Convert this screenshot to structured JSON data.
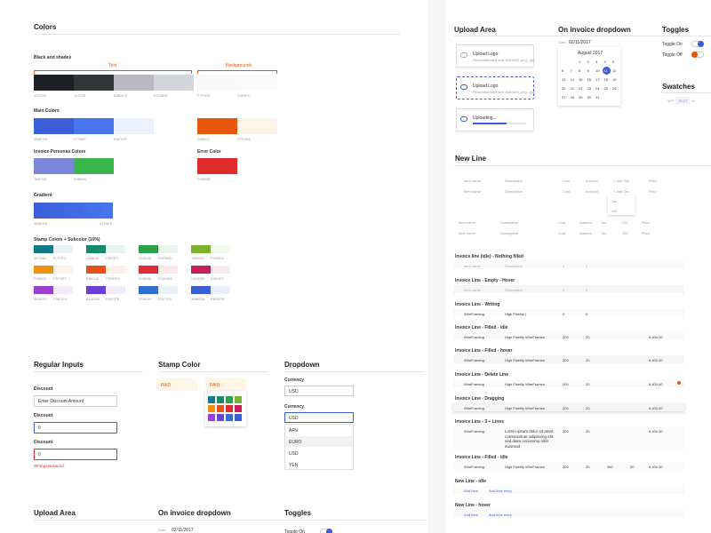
{
  "left": {
    "colors_title": "Colors",
    "black": {
      "label": "Black and shades",
      "text_label": "Text",
      "bg_label": "Backgrounds",
      "text": [
        "1C2024",
        "313739",
        "B8B8C0",
        "D2D6DB"
      ],
      "bg": [
        "F7F9FB",
        "F8FAFC"
      ]
    },
    "main": {
      "label": "Main Colors",
      "blue": [
        "3B5ED8",
        "4776EF",
        "EAF1FF"
      ],
      "orange": [
        "E8560C",
        "FFF4E8"
      ]
    },
    "personas": {
      "label": "Invoice Personas Colors",
      "colors": [
        "7B87D8",
        "39B54A"
      ]
    },
    "error": {
      "label": "Error Color",
      "colors": [
        "E02B2B"
      ]
    },
    "gradient": {
      "label": "Gradient",
      "colors": [
        "3B5ED8",
        "4776EF"
      ]
    },
    "stamp_colors": {
      "label": "Stamp Colors + Subcolor (10%)",
      "pairs": [
        [
          "0E7A8A",
          "E7F2F3"
        ],
        [
          "138A6A",
          "E8F3F0"
        ],
        [
          "2AA048",
          "EAF6ED"
        ],
        [
          "7AB32E",
          "F2F8EA"
        ],
        [
          "F0900C",
          "FEF4E7"
        ],
        [
          "E8511A",
          "FDEEE8"
        ],
        [
          "E02B36",
          "FCEAEB"
        ],
        [
          "C81E5B",
          "FAE9EF"
        ],
        [
          "9B3FD0",
          "F5ECFA"
        ],
        [
          "6A3FD8",
          "F0ECFB"
        ],
        [
          "2F6FD0",
          "EAF1FA"
        ],
        [
          "3B5ED8",
          "EBEFFB"
        ]
      ]
    },
    "inputs": {
      "title": "Regular Inputs",
      "fields": [
        {
          "label": "Discount",
          "value": "Enter Discount Amount"
        },
        {
          "label": "Discount",
          "value": "0"
        },
        {
          "label": "Discount",
          "value": "0",
          "error": "Wrong password."
        }
      ]
    },
    "stamp": {
      "title": "Stamp Color",
      "badge": "PAID"
    },
    "dropdown": {
      "title": "Dropdown",
      "label": "Currency",
      "value": "USD",
      "options": [
        "AFN",
        "EURO",
        "USD",
        "YEN"
      ]
    },
    "bottom": {
      "upload": "Upload Area",
      "invoice_dropdown": "On invoice dropdown",
      "toggles": "Toggles",
      "date_label": "Date",
      "date": "02/11/2017",
      "toggle_on": "Toggle On"
    }
  },
  "right": {
    "headings": {
      "upload": "Upload Area",
      "invoice_dropdown": "On invoice dropdown",
      "toggles": "Toggles",
      "swatches": "Swatches",
      "new_line": "New Line"
    },
    "upload": {
      "title": "Upload Logo",
      "hint": "Recommended size 800x800 .png, .jpg",
      "uploading": "Uploading..."
    },
    "date": {
      "label": "Date",
      "value": "02/11/2017"
    },
    "calendar": {
      "month": "August 2017",
      "days": [
        1,
        2,
        3,
        4,
        5,
        6,
        7,
        8,
        9,
        10,
        11,
        12,
        13,
        14,
        15,
        16,
        17,
        18,
        19,
        20,
        21,
        22,
        23,
        24,
        25,
        26,
        27,
        28,
        29,
        30,
        31
      ]
    },
    "toggles": {
      "on": "Toggle On",
      "off": "Toggle Off"
    },
    "swatch_options": [
      "OFF",
      "FLAT",
      "%"
    ],
    "table": {
      "header": [
        "Item name",
        "Description",
        "Cost",
        "Amount",
        "+ Add Tax",
        "Price"
      ],
      "tax_options": [
        "Tax",
        "VAT"
      ],
      "more_header": [
        "Item name",
        "Description",
        "Cost",
        "Amount",
        "Tax",
        "VAT",
        "Price"
      ]
    },
    "lines": [
      {
        "label": "Invoice line (idle) - Nothing filled",
        "cells": [
          "Item name",
          "Description",
          "0",
          "0"
        ]
      },
      {
        "label": "Invoice Line - Empty - Hover",
        "cells": [
          "Item name",
          "Description",
          "0",
          "0"
        ]
      },
      {
        "label": "Invoice Line - Writing",
        "cells": [
          "WireFraming",
          "High Fidelity |",
          "0",
          "0"
        ]
      },
      {
        "label": "Invoice Line - Filled - idle",
        "cells": [
          "WireFraming",
          "High Fidelity WireFrames",
          "200",
          "20",
          "6,400.00"
        ]
      },
      {
        "label": "Invoice Line - Filled - hover",
        "cells": [
          "WireFraming",
          "High Fidelity WireFrames",
          "200",
          "20",
          "6,400.00"
        ]
      },
      {
        "label": "Invoice Line - Delete Line",
        "cells": [
          "WireFraming",
          "High Fidelity WireFrames",
          "200",
          "20",
          "6,400.00"
        ]
      },
      {
        "label": "Invoice Line - Dragging",
        "cells": [
          "WireFraming",
          "High Fidelity WireFrames",
          "200",
          "20",
          "6,400.00"
        ]
      },
      {
        "label": "Invoice Line - 3 + Lines",
        "cells": [
          "WireFraming",
          "Lorem ipsum dolor sit amet, consectetuer adipiscing elit, sed diam nonummy nibh euismod",
          "200",
          "20",
          "6,400.00"
        ]
      },
      {
        "label": "Invoice Line - Filled - idle",
        "cells": [
          "WireFraming",
          "High Fidelity WireFrames",
          "200",
          "20",
          "260",
          "20",
          "6,400.00"
        ]
      },
      {
        "label": "New Line - idle",
        "cells": [
          "Add Item",
          "Add time entry"
        ]
      },
      {
        "label": "New Line - hover",
        "cells": [
          "Add Item",
          "Add time entry"
        ]
      }
    ]
  }
}
